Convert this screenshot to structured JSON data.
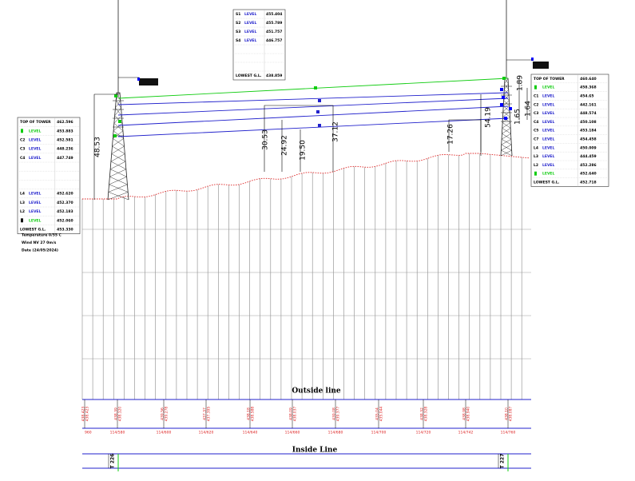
{
  "left_table": {
    "upper_rows": [
      {
        "label": "TOP OF TOWER",
        "value": "462.596"
      },
      {
        "label": "LEVEL",
        "value": "453.883"
      },
      {
        "code": "C2",
        "label": "LEVEL",
        "value": "452.581"
      },
      {
        "code": "C3",
        "label": "LEVEL",
        "value": "448.236"
      },
      {
        "code": "C4",
        "label": "LEVEL",
        "value": "447.749"
      }
    ],
    "lower_rows": [
      {
        "code": "L4",
        "label": "LEVEL",
        "value": "452.620"
      },
      {
        "code": "L3",
        "label": "LEVEL",
        "value": "452.370"
      },
      {
        "code": "L2",
        "label": "LEVEL",
        "value": "452.183"
      },
      {
        "label": "LEVEL",
        "value": "452.060"
      },
      {
        "label": "LOWEST G.L.",
        "value": "453.330"
      }
    ]
  },
  "notes": [
    "Temperature 0/55 C",
    "Wind NV 27 0m/s",
    "Date (24/05/2024)"
  ],
  "top_table": {
    "upper_rows": [
      {
        "code": "S1",
        "label": "LEVEL",
        "value": "455.404"
      },
      {
        "code": "S2",
        "label": "LEVEL",
        "value": "455.789"
      },
      {
        "code": "S3",
        "label": "LEVEL",
        "value": "451.757"
      },
      {
        "code": "S4",
        "label": "LEVEL",
        "value": "446.757"
      }
    ],
    "lower_rows": [
      {
        "label": "LOWEST G.L.",
        "value": "438.859"
      }
    ]
  },
  "right_table": {
    "upper_rows": [
      {
        "label": "TOP OF TOWER",
        "value": "460.640"
      },
      {
        "label": "LEVEL",
        "value": "458.368"
      },
      {
        "code": "C1",
        "label": "LEVEL",
        "value": "454.65"
      },
      {
        "code": "C2",
        "label": "LEVEL",
        "value": "442.161"
      },
      {
        "code": "C3",
        "label": "LEVEL",
        "value": "448.574"
      },
      {
        "code": "C4",
        "label": "LEVEL",
        "value": "450.108"
      },
      {
        "code": "C5",
        "label": "LEVEL",
        "value": "453.184"
      },
      {
        "code": "C7",
        "label": "LEVEL",
        "value": "454.458"
      },
      {
        "code": "L4",
        "label": "LEVEL",
        "value": "450.009"
      },
      {
        "code": "L3",
        "label": "LEVEL",
        "value": "444.459"
      },
      {
        "code": "L2",
        "label": "LEVEL",
        "value": "452.286"
      },
      {
        "label": "LEVEL",
        "value": "452.640"
      },
      {
        "label": "LOWEST G.L.",
        "value": "452.718"
      }
    ],
    "lower_rows": []
  },
  "dimensions": [
    "48.53",
    "30.53",
    "24.92",
    "19.50",
    "37.12",
    "17.26",
    "54.19",
    "1.65",
    "1.64",
    "1.89"
  ],
  "outside_label": "Outside line",
  "inside_label": "Inside Line",
  "towers": [
    "T 226",
    "T 227"
  ],
  "stations": [
    {
      "levels": [
        "438.423",
        "438.423"
      ],
      "chainage": "960"
    },
    {
      "levels": [
        "438.39",
        "438.120"
      ],
      "chainage": "114/580"
    },
    {
      "levels": [
        "439.56",
        "439.278"
      ],
      "chainage": "114/600"
    },
    {
      "levels": [
        "437.37",
        "437.395"
      ],
      "chainage": "114/620"
    },
    {
      "levels": [
        "438.18",
        "438.588"
      ],
      "chainage": "114/640"
    },
    {
      "levels": [
        "438.09",
        "438.037"
      ],
      "chainage": "114/660"
    },
    {
      "levels": [
        "439.08",
        "439.377"
      ],
      "chainage": "114/680"
    },
    {
      "levels": [
        "435.04",
        "435.044"
      ],
      "chainage": "114/700"
    },
    {
      "levels": [
        "438.32",
        "438.328"
      ],
      "chainage": "114/720"
    },
    {
      "levels": [
        "438.98",
        "438.940"
      ],
      "chainage": "114/742"
    },
    {
      "levels": [
        "438.10",
        "438.087"
      ],
      "chainage": "114/760"
    }
  ]
}
